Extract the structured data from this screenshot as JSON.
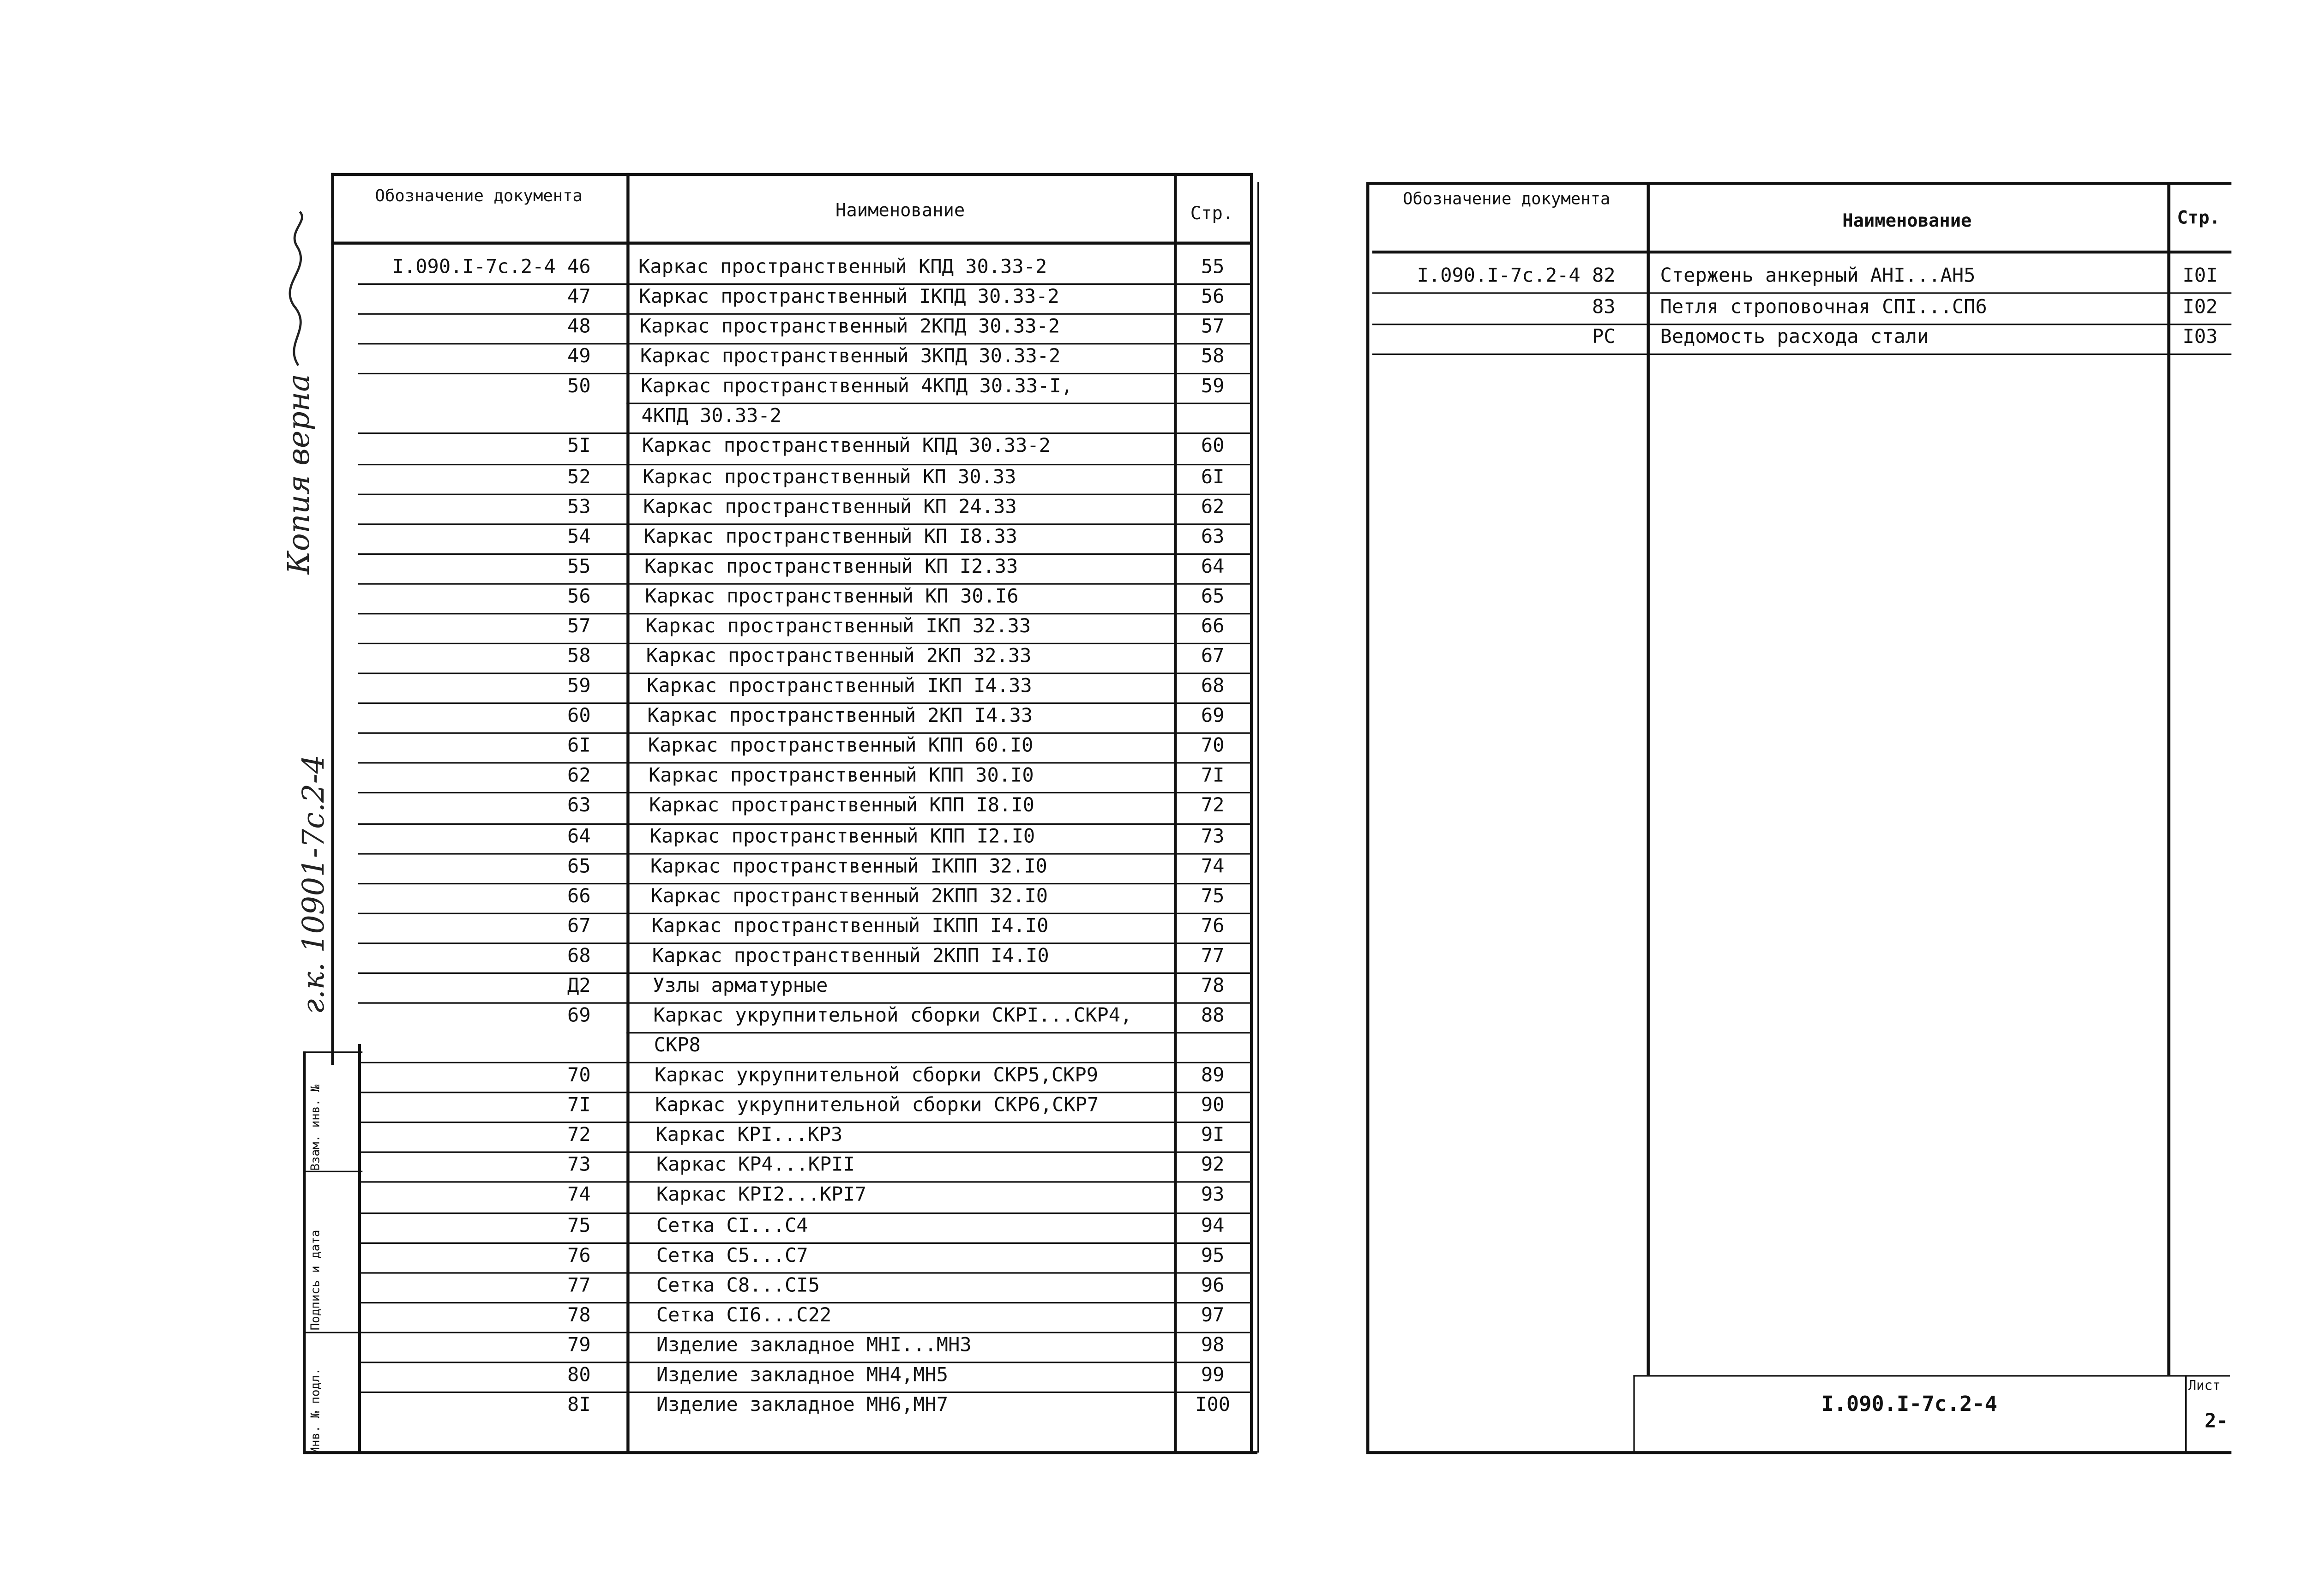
{
  "left_table": {
    "headers": {
      "designation": "Обозначение документа",
      "name": "Наименование",
      "page": "Стр."
    },
    "rows": [
      {
        "code": "I.090.I-7с.2-4 46",
        "name": "Каркас пространственный КПД 30.33-2",
        "page": "55"
      },
      {
        "code": "47",
        "name": "Каркас пространственный IКПД 30.33-2",
        "page": "56"
      },
      {
        "code": "48",
        "name": "Каркас пространственный 2КПД 30.33-2",
        "page": "57"
      },
      {
        "code": "49",
        "name": "Каркас пространственный 3КПД 30.33-2",
        "page": "58"
      },
      {
        "code": "50",
        "name": "Каркас пространственный 4КПД 30.33-I,",
        "page": "59"
      },
      {
        "code": "",
        "name": "4КПД 30.33-2",
        "page": ""
      },
      {
        "code": "5I",
        "name": "Каркас пространственный КПД 30.33-2",
        "page": "60"
      },
      {
        "code": "52",
        "name": "Каркас пространственный КП 30.33",
        "page": "6I"
      },
      {
        "code": "53",
        "name": "Каркас пространственный КП 24.33",
        "page": "62"
      },
      {
        "code": "54",
        "name": "Каркас пространственный КП I8.33",
        "page": "63"
      },
      {
        "code": "55",
        "name": "Каркас пространственный КП I2.33",
        "page": "64"
      },
      {
        "code": "56",
        "name": "Каркас пространственный КП 30.I6",
        "page": "65"
      },
      {
        "code": "57",
        "name": "Каркас пространственный IКП 32.33",
        "page": "66"
      },
      {
        "code": "58",
        "name": "Каркас пространственный 2КП 32.33",
        "page": "67"
      },
      {
        "code": "59",
        "name": "Каркас пространственный IКП I4.33",
        "page": "68"
      },
      {
        "code": "60",
        "name": "Каркас пространственный 2КП I4.33",
        "page": "69"
      },
      {
        "code": "6I",
        "name": "Каркас пространственный  КПП 60.I0",
        "page": "70"
      },
      {
        "code": "62",
        "name": "Каркас пространственный  КПП 30.I0",
        "page": "7I"
      },
      {
        "code": "63",
        "name": "Каркас пространственный  КПП I8.I0",
        "page": "72"
      },
      {
        "code": "64",
        "name": "Каркас пространственный  КПП I2.I0",
        "page": "73"
      },
      {
        "code": "65",
        "name": "Каркас пространственный IКПП 32.I0",
        "page": "74"
      },
      {
        "code": "66",
        "name": "Каркас пространственный 2КПП 32.I0",
        "page": "75"
      },
      {
        "code": "67",
        "name": "Каркас пространственный IКПП I4.I0",
        "page": "76"
      },
      {
        "code": "68",
        "name": "Каркас пространственный 2КПП I4.I0",
        "page": "77"
      },
      {
        "code": "Д2",
        "name": "Узлы арматурные",
        "page": "78"
      },
      {
        "code": "69",
        "name": "Каркас укрупнительной сборки СКРI...СКР4,",
        "page": "88"
      },
      {
        "code": "",
        "name": "СКР8",
        "page": ""
      },
      {
        "code": "70",
        "name": "Каркас укрупнительной сборки СКР5,СКР9",
        "page": "89"
      },
      {
        "code": "7I",
        "name": "Каркас укрупнительной сборки СКР6,СКР7",
        "page": "90"
      },
      {
        "code": "72",
        "name": "Каркас КРI...КР3",
        "page": "9I"
      },
      {
        "code": "73",
        "name": "Каркас КР4...КРII",
        "page": "92"
      },
      {
        "code": "74",
        "name": "Каркас КРI2...КРI7",
        "page": "93"
      },
      {
        "code": "75",
        "name": "Сетка СI...С4",
        "page": "94"
      },
      {
        "code": "76",
        "name": "Сетка С5...С7",
        "page": "95"
      },
      {
        "code": "77",
        "name": "Сетка С8...СI5",
        "page": "96"
      },
      {
        "code": "78",
        "name": "Сетка СI6...С22",
        "page": "97"
      },
      {
        "code": "79",
        "name": "Изделие закладное МНI...МН3",
        "page": "98"
      },
      {
        "code": "80",
        "name": "Изделие закладное МН4,МН5",
        "page": "99"
      },
      {
        "code": "8I",
        "name": "Изделие закладное МН6,МН7",
        "page": "I00"
      }
    ]
  },
  "right_table": {
    "headers": {
      "designation": "Обозначение документа",
      "name": "Наименование",
      "page": "Стр."
    },
    "rows": [
      {
        "code": "I.090.I-7с.2-4 82",
        "name": "Стержень анкерный АНI...АН5",
        "page": "I0I"
      },
      {
        "code": "83",
        "name": "Петля строповочная СПI...СП6",
        "page": "I02"
      },
      {
        "code": "РС",
        "name": "Ведомость расхода стали",
        "page": "I03"
      }
    ]
  },
  "title_block": {
    "designation": "I.090.I-7с.2-4",
    "sheet_label": "Лист",
    "sheet": "2-"
  },
  "side_stamp": {
    "inv_orig": "Инв. № подл.",
    "signature_date": "Подпись и дата",
    "replace_inv": "Взам. инв. №"
  },
  "handwritten": {
    "certified": "Копия верна",
    "ref": "г.к. 10901-7с.2-4"
  }
}
